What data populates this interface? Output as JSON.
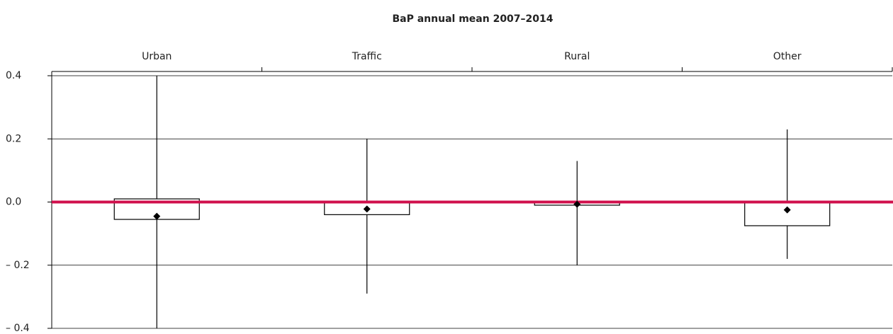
{
  "chart_data": {
    "type": "box",
    "title": "BaP annual mean 2007–2014",
    "categories": [
      "Urban",
      "Traffic",
      "Rural",
      "Other"
    ],
    "whisker_low": [
      -0.4,
      -0.29,
      -0.2,
      -0.18
    ],
    "box_low": [
      -0.055,
      -0.04,
      -0.01,
      -0.075
    ],
    "box_high": [
      0.01,
      0,
      0,
      0
    ],
    "whisker_high": [
      0.4,
      0.2,
      0.13,
      0.23
    ],
    "mean": [
      -0.045,
      -0.022,
      -0.007,
      -0.025
    ],
    "ylim": [
      -0.4,
      0.4
    ],
    "yticks": [
      {
        "value": -0.4,
        "label": "– 0.4"
      },
      {
        "value": -0.2,
        "label": "– 0.2"
      },
      {
        "value": 0,
        "label": "0.0"
      },
      0.2,
      0.4
    ],
    "grid": true,
    "reference_line": {
      "value": 0,
      "color": "#d0104c"
    },
    "color": "#000000"
  }
}
